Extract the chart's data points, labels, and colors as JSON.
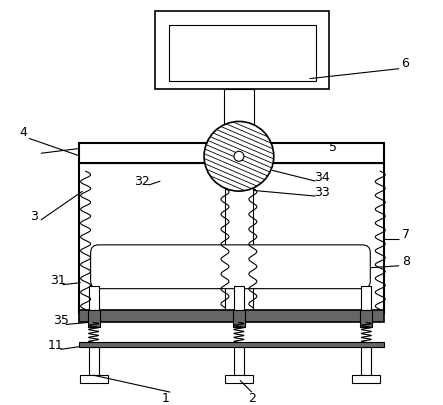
{
  "bg_color": "#ffffff",
  "line_color": "#000000",
  "dark_fill": "#666666"
}
